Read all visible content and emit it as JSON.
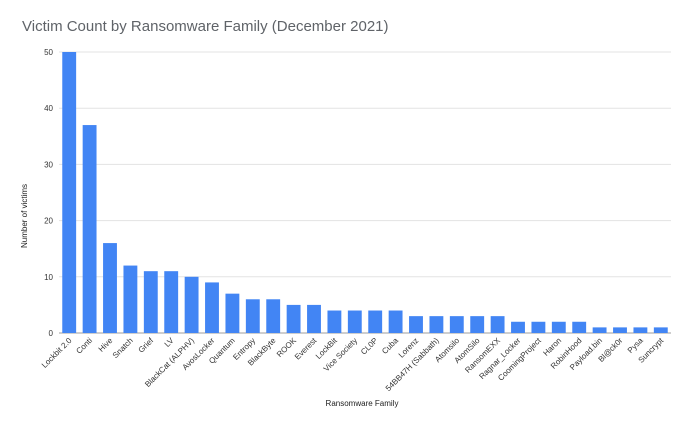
{
  "chart_data": {
    "type": "bar",
    "title": "Victim Count by Ransomware Family (December 2021)",
    "xlabel": "Ransomware Family",
    "ylabel": "Number of victims",
    "ylim": [
      0,
      50
    ],
    "yticks": [
      0,
      10,
      20,
      30,
      40,
      50
    ],
    "grid": true,
    "bar_color": "#4285f4",
    "categories": [
      "Lockbit 2.0",
      "Conti",
      "Hive",
      "Snatch",
      "Grief",
      "LV",
      "BlackCat (ALPHV)",
      "AvosLocker",
      "Quantum",
      "Entropy",
      "BlackByte",
      "ROOK",
      "Everest",
      "LockBit",
      "Vice Society",
      "CL0P",
      "Cuba",
      "Lorenz",
      "54BB47H (Sabbath)",
      "Atomsilo",
      "AtomSilo",
      "RansomEXX",
      "Ragnar_Locker",
      "CoomingProject",
      "Haron",
      "RobinHood",
      "Payload.bin",
      "Bl@ck0r",
      "Pysa",
      "Suncrypt"
    ],
    "values": [
      50,
      37,
      16,
      12,
      11,
      11,
      10,
      9,
      7,
      6,
      6,
      5,
      5,
      4,
      4,
      4,
      4,
      3,
      3,
      3,
      3,
      3,
      2,
      2,
      2,
      2,
      1,
      1,
      1,
      1
    ]
  }
}
